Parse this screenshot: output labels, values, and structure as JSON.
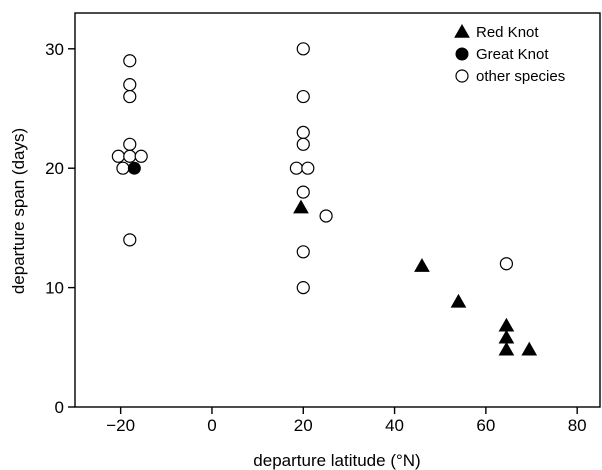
{
  "chart_data": {
    "type": "scatter",
    "xlabel": "departure latitude (°N)",
    "ylabel": "departure span (days)",
    "xlim": [
      -30,
      85
    ],
    "ylim": [
      0,
      33
    ],
    "xticks": [
      -20,
      0,
      20,
      40,
      60,
      80
    ],
    "yticks": [
      0,
      10,
      20,
      30
    ],
    "xtick_labels": [
      "−20",
      "0",
      "20",
      "40",
      "60",
      "80"
    ],
    "ytick_labels": [
      "0",
      "10",
      "20",
      "30"
    ],
    "grid": false,
    "legend_position": "top-right",
    "series": [
      {
        "name": "Red Knot",
        "marker": "filled-triangle",
        "color": "#000000",
        "points": [
          {
            "x": 19.5,
            "y": 16.7
          },
          {
            "x": 46,
            "y": 11.8
          },
          {
            "x": 54,
            "y": 8.8
          },
          {
            "x": 64.5,
            "y": 6.8
          },
          {
            "x": 64.5,
            "y": 5.8
          },
          {
            "x": 64.5,
            "y": 4.8
          },
          {
            "x": 69.5,
            "y": 4.8
          }
        ]
      },
      {
        "name": "Great Knot",
        "marker": "filled-circle",
        "color": "#000000",
        "points": [
          {
            "x": -17,
            "y": 20
          }
        ]
      },
      {
        "name": "other species",
        "marker": "open-circle",
        "color": "#000000",
        "points": [
          {
            "x": -18,
            "y": 29
          },
          {
            "x": -18,
            "y": 27
          },
          {
            "x": -18,
            "y": 26
          },
          {
            "x": -18,
            "y": 22
          },
          {
            "x": -20.5,
            "y": 21
          },
          {
            "x": -18,
            "y": 21
          },
          {
            "x": -15.5,
            "y": 21
          },
          {
            "x": -19.5,
            "y": 20
          },
          {
            "x": -18,
            "y": 14
          },
          {
            "x": 20,
            "y": 30
          },
          {
            "x": 20,
            "y": 26
          },
          {
            "x": 20,
            "y": 23
          },
          {
            "x": 20,
            "y": 22
          },
          {
            "x": 18.5,
            "y": 20
          },
          {
            "x": 21,
            "y": 20
          },
          {
            "x": 20,
            "y": 18
          },
          {
            "x": 20,
            "y": 13
          },
          {
            "x": 20,
            "y": 10
          },
          {
            "x": 25,
            "y": 16
          },
          {
            "x": 64.5,
            "y": 12
          }
        ]
      }
    ]
  }
}
